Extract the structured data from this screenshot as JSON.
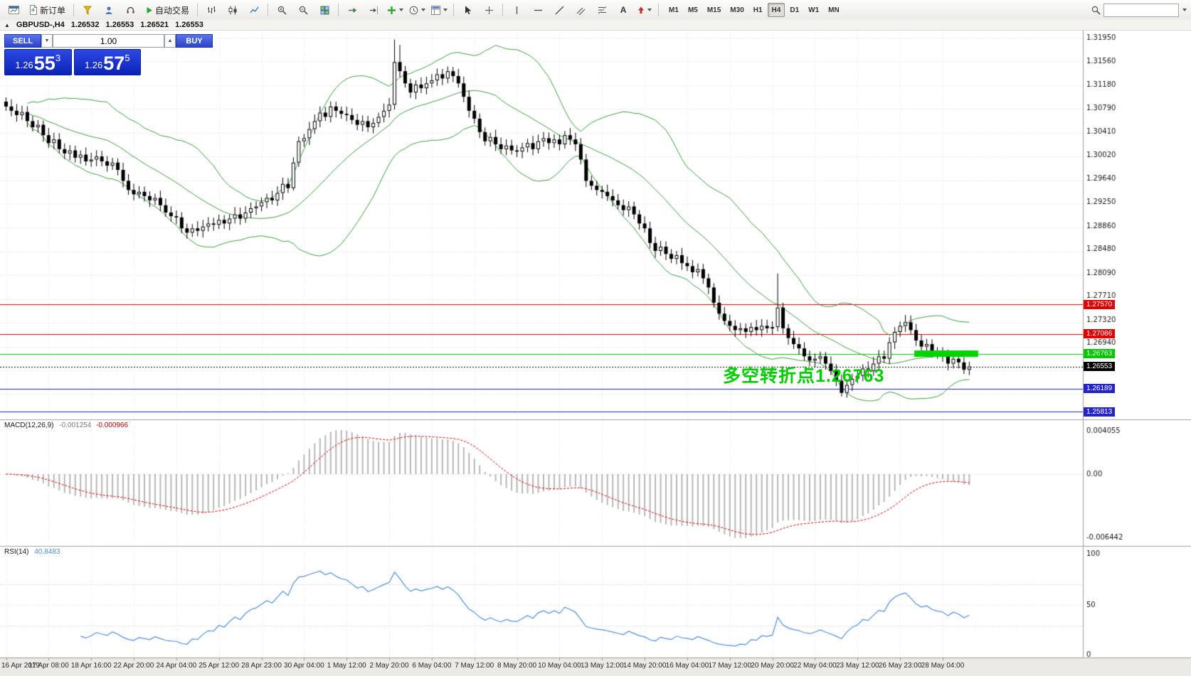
{
  "colors": {
    "accent_blue": "#1f3fd0",
    "bollinger": "#3fa040",
    "candle_up": "#ffffff",
    "candle_down": "#000000",
    "candle_border": "#000000",
    "macd_histogram": "#b8b8b8",
    "macd_signal": "#e00000",
    "rsi_line": "#4f8fde",
    "bid_line": "#8c8c8c",
    "grid": "#e2e2e2",
    "annotation_green": "#00cc00",
    "highlight_green": "#00d400"
  },
  "toolbar": {
    "new_order_label": "新订单",
    "autotrading_label": "自动交易",
    "timeframes": [
      "M1",
      "M5",
      "M15",
      "M30",
      "H1",
      "H4",
      "D1",
      "W1",
      "MN"
    ],
    "active_timeframe": "H4",
    "search_value": "",
    "icons": [
      "new-chart",
      "new-order",
      "metaeditor",
      "market-watch",
      "signals",
      "autotrading-play",
      "bar-chart",
      "candlestick-chart",
      "line-chart",
      "zoom-in",
      "zoom-out",
      "tile-windows",
      "auto-scroll",
      "chart-shift",
      "indicators-add",
      "periods",
      "templates",
      "cursor",
      "crosshair",
      "vertical-line",
      "horizontal-line",
      "trendline",
      "equidistant-channel",
      "fibonacci",
      "text",
      "arrows",
      "search"
    ]
  },
  "symbol_info": {
    "symbol": "GBPUSD-,H4",
    "open": "1.26532",
    "high": "1.26553",
    "low": "1.26521",
    "close": "1.26553"
  },
  "one_click": {
    "sell_label": "SELL",
    "buy_label": "BUY",
    "volume_value": "1.00",
    "sell_price": {
      "big_figure": "1.26",
      "pips": "55",
      "pip_fraction": "3"
    },
    "buy_price": {
      "big_figure": "1.26",
      "pips": "57",
      "pip_fraction": "5"
    }
  },
  "chart_data": {
    "type": "candlestick",
    "symbol": "GBPUSD-",
    "timeframe": "H4",
    "ohlc_current": {
      "open": 1.26532,
      "high": 1.26553,
      "low": 1.26521,
      "close": 1.26553
    },
    "price_axis_labels": [
      "1.31950",
      "1.31560",
      "1.31180",
      "1.30790",
      "1.30410",
      "1.30020",
      "1.29640",
      "1.29250",
      "1.28860",
      "1.28480",
      "1.28090",
      "1.27710",
      "1.27320",
      "1.26940"
    ],
    "time_axis_labels": [
      "16 Apr 2019",
      "17 Apr 08:00",
      "18 Apr 16:00",
      "22 Apr 20:00",
      "24 Apr 04:00",
      "25 Apr 12:00",
      "28 Apr 23:00",
      "30 Apr 04:00",
      "1 May 12:00",
      "2 May 20:00",
      "6 May 04:00",
      "7 May 12:00",
      "8 May 20:00",
      "10 May 04:00",
      "13 May 12:00",
      "14 May 20:00",
      "16 May 04:00",
      "17 May 12:00",
      "20 May 20:00",
      "22 May 04:00",
      "23 May 12:00",
      "26 May 23:00",
      "28 May 04:00"
    ],
    "first_open": 1.309,
    "closes": [
      1.3082,
      1.3075,
      1.3068,
      1.3073,
      1.3058,
      1.3048,
      1.3052,
      1.3035,
      1.3022,
      1.3028,
      1.3012,
      1.3005,
      1.301,
      1.2998,
      1.3003,
      1.2992,
      1.2995,
      1.3,
      1.2992,
      1.2985,
      1.299,
      1.2978,
      1.296,
      1.2945,
      1.2938,
      1.2942,
      1.2935,
      1.2928,
      1.2932,
      1.292,
      1.2908,
      1.2902,
      1.29,
      1.2882,
      1.2875,
      1.2882,
      1.2878,
      1.2885,
      1.289,
      1.2888,
      1.2896,
      1.289,
      1.2898,
      1.2905,
      1.2898,
      1.2908,
      1.2915,
      1.2918,
      1.2925,
      1.2932,
      1.2928,
      1.294,
      1.2955,
      1.2948,
      1.299,
      1.3025,
      1.303,
      1.3045,
      1.3058,
      1.3072,
      1.3065,
      1.3082,
      1.3075,
      1.307,
      1.3068,
      1.306,
      1.3052,
      1.3058,
      1.3048,
      1.3055,
      1.3065,
      1.3075,
      1.3085,
      1.3155,
      1.314,
      1.312,
      1.3105,
      1.3118,
      1.3112,
      1.312,
      1.3125,
      1.3135,
      1.3128,
      1.314,
      1.3132,
      1.312,
      1.3098,
      1.3075,
      1.3062,
      1.304,
      1.3025,
      1.3032,
      1.302,
      1.3012,
      1.3018,
      1.301,
      1.3008,
      1.3015,
      1.3022,
      1.3012,
      1.3025,
      1.303,
      1.3022,
      1.3028,
      1.302,
      1.3035,
      1.3028,
      1.302,
      1.2995,
      1.296,
      1.2952,
      1.2945,
      1.2942,
      1.2935,
      1.2928,
      1.292,
      1.2912,
      1.2918,
      1.2905,
      1.289,
      1.2882,
      1.2858,
      1.2845,
      1.2852,
      1.284,
      1.2832,
      1.2838,
      1.2825,
      1.282,
      1.281,
      1.2815,
      1.28,
      1.2785,
      1.276,
      1.2742,
      1.273,
      1.2722,
      1.2715,
      1.2718,
      1.2712,
      1.272,
      1.2715,
      1.2722,
      1.2718,
      1.272,
      1.2752,
      1.2718,
      1.2702,
      1.2692,
      1.2685,
      1.2672,
      1.2665,
      1.2668,
      1.2672,
      1.266,
      1.2648,
      1.2632,
      1.2612,
      1.2625,
      1.2635,
      1.264,
      1.2652,
      1.2648,
      1.266,
      1.2672,
      1.2668,
      1.2695,
      1.2712,
      1.2722,
      1.2728,
      1.2715,
      1.2698,
      1.2688,
      1.2692,
      1.268,
      1.2675,
      1.2672,
      1.266,
      1.2668,
      1.2662,
      1.265,
      1.26553
    ],
    "wick_overrides": {
      "54": {
        "low": 1.2944
      },
      "73": {
        "high": 1.3192
      },
      "74": {
        "high": 1.3183
      },
      "145": {
        "high": 1.2808
      },
      "157": {
        "low": 1.2606
      }
    },
    "bollinger": {
      "period": 20,
      "deviation": 2
    },
    "levels": [
      {
        "price": 1.2757,
        "label": "1.27570",
        "color": "#e00000",
        "style": "solid"
      },
      {
        "price": 1.27086,
        "label": "1.27086",
        "color": "#e00000",
        "style": "solid"
      },
      {
        "price": 1.26763,
        "label": "1.26763",
        "color": "#00c800",
        "style": "solid"
      },
      {
        "price": 1.26553,
        "label": "1.26553",
        "color": "#000000",
        "style": "dotted"
      },
      {
        "price": 1.26189,
        "label": "1.26189",
        "color": "#2323c8",
        "style": "solid"
      },
      {
        "price": 1.25813,
        "label": "1.25813",
        "color": "#2323c8",
        "style": "solid"
      }
    ],
    "highlight_bar": {
      "price": 1.26763,
      "start_index": 171,
      "end_index": 183,
      "color": "#00d400"
    },
    "annotation": {
      "text": "多空转折点1.26763",
      "color": "#00cc00"
    },
    "macd": {
      "name": "MACD(12,26,9)",
      "fast": 12,
      "slow": 26,
      "signal": 9,
      "current_main": "-0.001254",
      "current_signal": "-0.000966",
      "axis_max_label": "0.004055",
      "axis_zero_label": "0.00",
      "axis_min_label": "-0.006442"
    },
    "rsi": {
      "name": "RSI(14)",
      "period": 14,
      "current": "40.8483",
      "axis_labels": [
        "100",
        "50",
        "0"
      ],
      "levels": [
        70,
        30
      ]
    }
  }
}
